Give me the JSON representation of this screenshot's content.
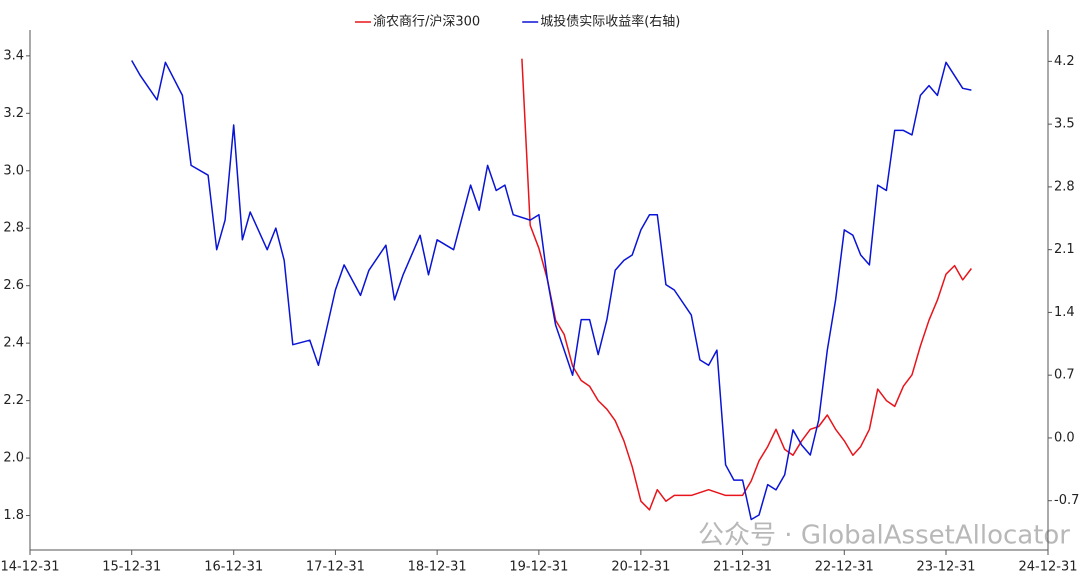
{
  "chart_data": {
    "type": "line",
    "xlim": [
      "14-12-31",
      "24-12-31"
    ],
    "xticks": [
      "14-12-31",
      "15-12-31",
      "16-12-31",
      "17-12-31",
      "18-12-31",
      "19-12-31",
      "20-12-31",
      "21-12-31",
      "22-12-31",
      "23-12-31",
      "24-12-31"
    ],
    "ylim": [
      1.68,
      3.49
    ],
    "yticks": [
      {
        "value": 1.8,
        "label": "1.8"
      },
      {
        "value": 2,
        "label": "2.0"
      },
      {
        "value": 2.2,
        "label": "2.2"
      },
      {
        "value": 2.4,
        "label": "2.4"
      },
      {
        "value": 2.6,
        "label": "2.6"
      },
      {
        "value": 2.8,
        "label": "2.8"
      },
      {
        "value": 3,
        "label": "3.0"
      },
      {
        "value": 3.2,
        "label": "3.2"
      },
      {
        "value": 3.4,
        "label": "3.4"
      }
    ],
    "y2lim": [
      -1.25,
      4.55
    ],
    "y2ticks": [
      -0.7,
      {
        "value": 0,
        "label": "0.0"
      },
      0.7,
      1.4,
      2.1,
      2.8,
      3.5,
      4.2
    ],
    "grid": false,
    "legend": "top",
    "watermark": "公众号 · GlobalAssetAllocator",
    "series": [
      {
        "name": "渝农商行/沪深300",
        "color": "#e8141b",
        "x": [
          "19-10-31",
          "19-11-30",
          "19-12-31",
          "20-01-31",
          "20-02-29",
          "20-03-31",
          "20-04-30",
          "20-05-31",
          "20-06-30",
          "20-07-31",
          "20-08-31",
          "20-09-30",
          "20-10-31",
          "20-11-30",
          "20-12-31",
          "21-01-31",
          "21-02-28",
          "21-03-31",
          "21-04-30",
          "21-06-30",
          "21-08-31",
          "21-10-31",
          "21-12-31",
          "22-01-31",
          "22-02-28",
          "22-03-31",
          "22-04-30",
          "22-05-31",
          "22-06-30",
          "22-07-31",
          "22-08-31",
          "22-09-30",
          "22-10-31",
          "22-11-30",
          "22-12-31",
          "23-01-31",
          "23-02-28",
          "23-03-31",
          "23-04-30",
          "23-05-31",
          "23-06-30",
          "23-07-31",
          "23-08-31",
          "23-09-30",
          "23-10-31",
          "23-11-30",
          "23-12-31",
          "24-01-31",
          "24-02-29",
          "24-03-31"
        ],
        "values": [
          3.39,
          2.81,
          2.73,
          2.62,
          2.48,
          2.43,
          2.32,
          2.27,
          2.25,
          2.2,
          2.17,
          2.13,
          2.06,
          1.97,
          1.85,
          1.82,
          1.89,
          1.85,
          1.87,
          1.87,
          1.89,
          1.87,
          1.87,
          1.92,
          1.99,
          2.04,
          2.1,
          2.03,
          2.01,
          2.06,
          2.1,
          2.11,
          2.15,
          2.1,
          2.06,
          2.01,
          2.04,
          2.1,
          2.24,
          2.2,
          2.18,
          2.25,
          2.29,
          2.39,
          2.48,
          2.55,
          2.64,
          2.67,
          2.62,
          2.66
        ]
      },
      {
        "name": "城投债实际收益率(右轴)",
        "color": "#0a14d6",
        "axis": "y2",
        "x": [
          "15-12-31",
          "16-01-31",
          "16-03-31",
          "16-04-30",
          "16-06-30",
          "16-07-31",
          "16-09-30",
          "16-10-31",
          "16-11-30",
          "16-12-31",
          "17-01-31",
          "17-02-28",
          "17-04-30",
          "17-05-31",
          "17-06-30",
          "17-07-31",
          "17-09-30",
          "17-10-31",
          "17-12-31",
          "18-01-31",
          "18-03-31",
          "18-04-30",
          "18-06-30",
          "18-07-31",
          "18-08-31",
          "18-10-31",
          "18-11-30",
          "18-12-31",
          "19-02-28",
          "19-04-30",
          "19-05-31",
          "19-06-30",
          "19-07-31",
          "19-08-31",
          "19-09-30",
          "19-11-30",
          "19-12-31",
          "20-01-31",
          "20-02-29",
          "20-03-31",
          "20-04-30",
          "20-05-31",
          "20-06-30",
          "20-07-31",
          "20-08-31",
          "20-09-30",
          "20-10-31",
          "20-11-30",
          "20-12-31",
          "21-01-31",
          "21-02-28",
          "21-03-31",
          "21-04-30",
          "21-06-30",
          "21-07-31",
          "21-08-31",
          "21-09-30",
          "21-10-31",
          "21-11-30",
          "21-12-31",
          "22-01-31",
          "22-02-28",
          "22-03-31",
          "22-04-30",
          "22-05-31",
          "22-06-30",
          "22-07-31",
          "22-08-31",
          "22-09-30",
          "22-10-31",
          "22-11-30",
          "22-12-31",
          "23-01-31",
          "23-02-28",
          "23-03-31",
          "23-04-30",
          "23-05-31",
          "23-06-30",
          "23-07-31",
          "23-08-31",
          "23-09-30",
          "23-10-31",
          "23-11-30",
          "23-12-31",
          "24-01-31",
          "24-02-29",
          "24-03-31"
        ],
        "values": [
          4.21,
          4.04,
          3.77,
          4.19,
          3.82,
          3.04,
          2.93,
          2.1,
          2.43,
          3.49,
          2.21,
          2.52,
          2.1,
          2.34,
          1.98,
          1.04,
          1.09,
          0.81,
          1.65,
          1.93,
          1.59,
          1.87,
          2.15,
          1.54,
          1.82,
          2.26,
          1.82,
          2.21,
          2.1,
          2.82,
          2.54,
          3.04,
          2.76,
          2.82,
          2.49,
          2.43,
          2.49,
          1.76,
          1.26,
          0.98,
          0.7,
          1.32,
          1.32,
          0.93,
          1.32,
          1.87,
          1.98,
          2.04,
          2.32,
          2.49,
          2.49,
          1.71,
          1.65,
          1.37,
          0.87,
          0.81,
          0.98,
          -0.3,
          -0.47,
          -0.47,
          -0.91,
          -0.86,
          -0.52,
          -0.58,
          -0.41,
          0.09,
          -0.08,
          -0.19,
          0.2,
          0.98,
          1.54,
          2.32,
          2.26,
          2.04,
          1.93,
          2.82,
          2.76,
          3.43,
          3.43,
          3.38,
          3.82,
          3.93,
          3.82,
          4.19,
          4.04,
          3.9,
          3.88
        ]
      }
    ]
  }
}
